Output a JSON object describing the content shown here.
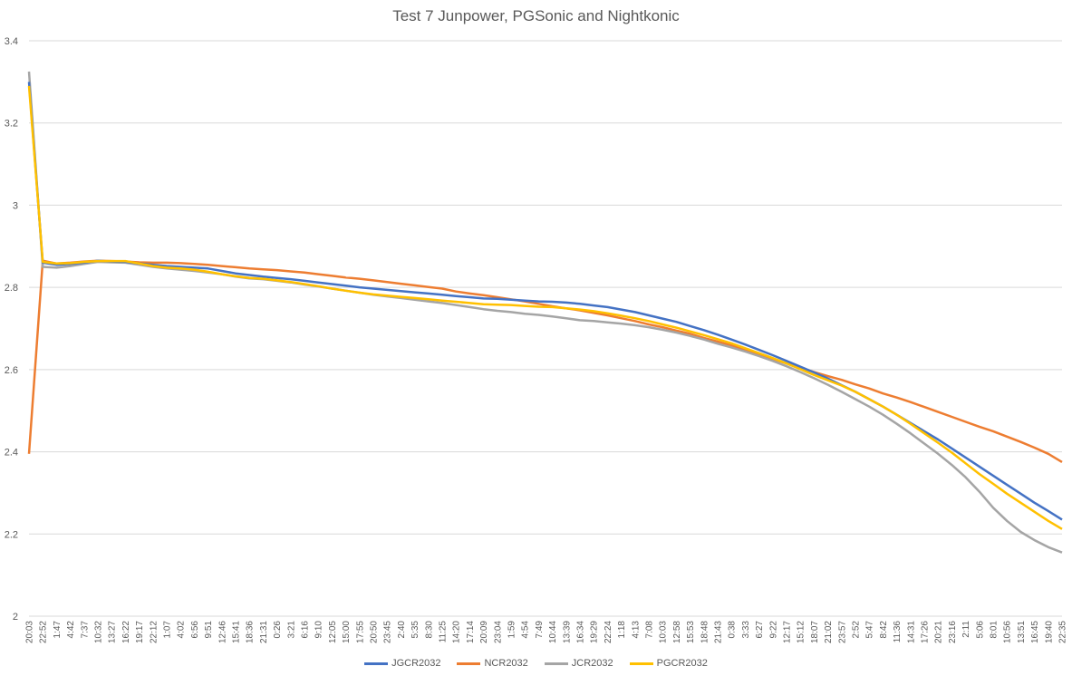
{
  "chart_data": {
    "type": "line",
    "title": "Test 7 Junpower, PGSonic and Nightkonic",
    "xlabel": "",
    "ylabel": "",
    "ylim": [
      2,
      3.4
    ],
    "yticks": [
      "2",
      "2.2",
      "2.4",
      "2.6",
      "2.8",
      "3",
      "3.2",
      "3.4"
    ],
    "categories": [
      "20:03",
      "22:52",
      "1:47",
      "4:42",
      "7:37",
      "10:32",
      "13:27",
      "16:22",
      "19:17",
      "22:12",
      "1:07",
      "4:02",
      "6:56",
      "9:51",
      "12:46",
      "15:41",
      "18:36",
      "21:31",
      "0:26",
      "3:21",
      "6:16",
      "9:10",
      "12:05",
      "15:00",
      "17:55",
      "20:50",
      "23:45",
      "2:40",
      "5:35",
      "8:30",
      "11:25",
      "14:20",
      "17:14",
      "20:09",
      "23:04",
      "1:59",
      "4:54",
      "7:49",
      "10:44",
      "13:39",
      "16:34",
      "19:29",
      "22:24",
      "1:18",
      "4:13",
      "7:08",
      "10:03",
      "12:58",
      "15:53",
      "18:48",
      "21:43",
      "0:38",
      "3:33",
      "6:27",
      "9:22",
      "12:17",
      "15:12",
      "18:07",
      "21:02",
      "23:57",
      "2:52",
      "5:47",
      "8:42",
      "11:36",
      "14:31",
      "17:26",
      "20:21",
      "23:16",
      "2:11",
      "5:06",
      "8:01",
      "10:56",
      "13:51",
      "16:45",
      "19:40",
      "22:35"
    ],
    "grid": true,
    "legend_position": "bottom",
    "series": [
      {
        "name": "JGCR2032",
        "color": "#4472C4",
        "values": [
          3.3,
          2.86,
          2.855,
          2.857,
          2.86,
          2.865,
          2.863,
          2.862,
          2.858,
          2.855,
          2.852,
          2.85,
          2.848,
          2.846,
          2.84,
          2.834,
          2.83,
          2.826,
          2.823,
          2.82,
          2.816,
          2.812,
          2.808,
          2.804,
          2.8,
          2.797,
          2.794,
          2.791,
          2.788,
          2.785,
          2.782,
          2.779,
          2.776,
          2.773,
          2.772,
          2.77,
          2.768,
          2.766,
          2.765,
          2.763,
          2.76,
          2.756,
          2.752,
          2.746,
          2.74,
          2.732,
          2.724,
          2.716,
          2.706,
          2.696,
          2.685,
          2.673,
          2.661,
          2.648,
          2.635,
          2.621,
          2.607,
          2.593,
          2.578,
          2.562,
          2.546,
          2.528,
          2.51,
          2.49,
          2.47,
          2.45,
          2.43,
          2.408,
          2.386,
          2.364,
          2.342,
          2.32,
          2.298,
          2.276,
          2.256,
          2.235
        ]
      },
      {
        "name": "NCR2032",
        "color": "#ED7D31",
        "values": [
          2.395,
          2.865,
          2.858,
          2.86,
          2.863,
          2.865,
          2.864,
          2.863,
          2.861,
          2.86,
          2.86,
          2.859,
          2.857,
          2.855,
          2.852,
          2.849,
          2.846,
          2.844,
          2.842,
          2.839,
          2.836,
          2.832,
          2.828,
          2.824,
          2.821,
          2.817,
          2.813,
          2.809,
          2.805,
          2.801,
          2.797,
          2.79,
          2.785,
          2.781,
          2.776,
          2.771,
          2.766,
          2.76,
          2.754,
          2.749,
          2.744,
          2.738,
          2.732,
          2.725,
          2.718,
          2.71,
          2.703,
          2.695,
          2.687,
          2.677,
          2.668,
          2.659,
          2.648,
          2.636,
          2.626,
          2.615,
          2.605,
          2.594,
          2.584,
          2.575,
          2.564,
          2.554,
          2.542,
          2.532,
          2.521,
          2.509,
          2.497,
          2.485,
          2.473,
          2.461,
          2.45,
          2.437,
          2.424,
          2.41,
          2.395,
          2.375
        ]
      },
      {
        "name": "JCR2032",
        "color": "#A5A5A5",
        "values": [
          3.325,
          2.85,
          2.848,
          2.852,
          2.857,
          2.862,
          2.861,
          2.86,
          2.855,
          2.85,
          2.846,
          2.843,
          2.84,
          2.836,
          2.832,
          2.826,
          2.822,
          2.82,
          2.816,
          2.812,
          2.807,
          2.802,
          2.797,
          2.792,
          2.787,
          2.782,
          2.778,
          2.774,
          2.77,
          2.766,
          2.762,
          2.757,
          2.752,
          2.747,
          2.743,
          2.74,
          2.736,
          2.733,
          2.729,
          2.725,
          2.72,
          2.718,
          2.715,
          2.712,
          2.708,
          2.703,
          2.697,
          2.69,
          2.682,
          2.673,
          2.663,
          2.654,
          2.644,
          2.633,
          2.621,
          2.608,
          2.594,
          2.579,
          2.563,
          2.546,
          2.528,
          2.51,
          2.49,
          2.468,
          2.445,
          2.42,
          2.395,
          2.368,
          2.338,
          2.303,
          2.264,
          2.232,
          2.205,
          2.185,
          2.168,
          2.155
        ]
      },
      {
        "name": "PGCR2032",
        "color": "#FFC000",
        "values": [
          3.29,
          2.862,
          2.858,
          2.859,
          2.862,
          2.864,
          2.864,
          2.864,
          2.858,
          2.852,
          2.848,
          2.846,
          2.843,
          2.838,
          2.832,
          2.827,
          2.823,
          2.821,
          2.817,
          2.813,
          2.808,
          2.803,
          2.797,
          2.792,
          2.787,
          2.783,
          2.78,
          2.777,
          2.774,
          2.771,
          2.768,
          2.765,
          2.762,
          2.759,
          2.758,
          2.757,
          2.755,
          2.753,
          2.752,
          2.749,
          2.746,
          2.742,
          2.737,
          2.731,
          2.725,
          2.718,
          2.71,
          2.702,
          2.693,
          2.684,
          2.674,
          2.664,
          2.652,
          2.64,
          2.628,
          2.615,
          2.601,
          2.587,
          2.574,
          2.561,
          2.546,
          2.528,
          2.51,
          2.49,
          2.468,
          2.445,
          2.422,
          2.398,
          2.372,
          2.346,
          2.322,
          2.298,
          2.276,
          2.254,
          2.232,
          2.212
        ]
      }
    ]
  }
}
